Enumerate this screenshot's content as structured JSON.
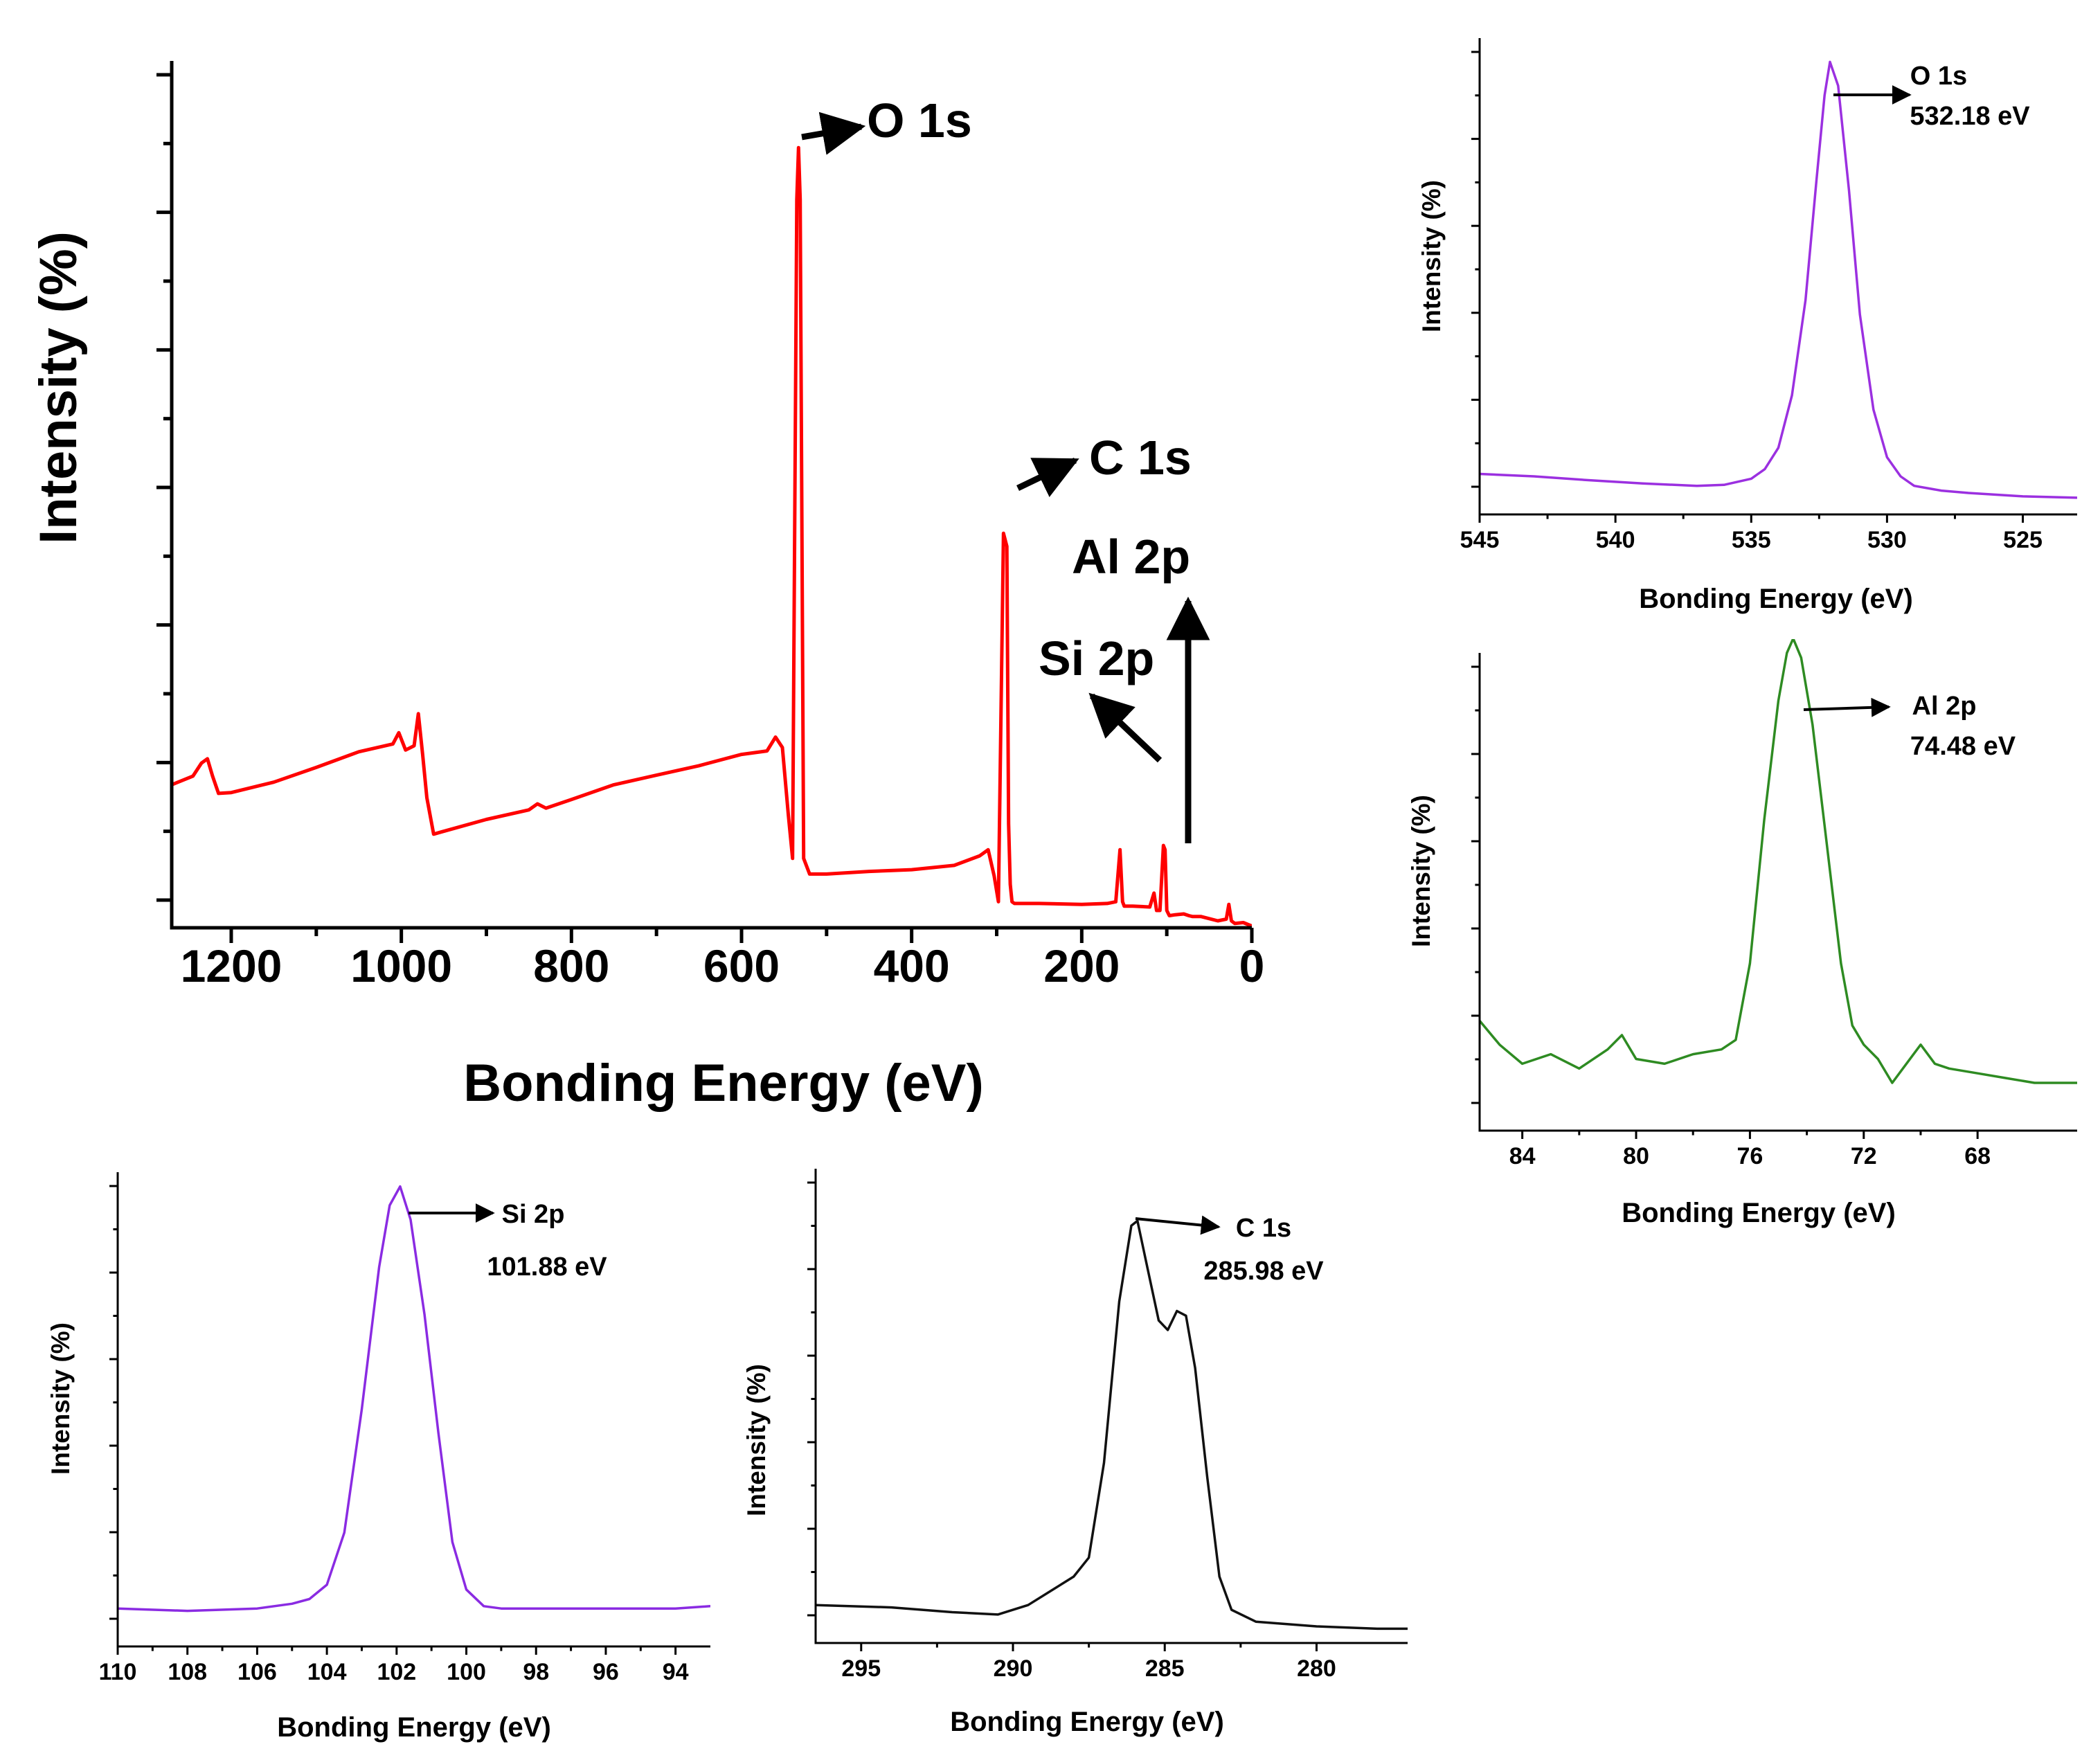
{
  "chart_data": [
    {
      "id": "survey",
      "type": "line",
      "title": "",
      "xlabel": "Bonding Energy (eV)",
      "ylabel": "Intensity (%)",
      "xlim": [
        1270,
        0
      ],
      "ylim": [
        0,
        100
      ],
      "xticks": [
        1200,
        1000,
        800,
        600,
        400,
        200,
        0
      ],
      "color": "#ff0000",
      "series": [
        {
          "x": [
            1270,
            1245,
            1235,
            1228,
            1222,
            1215,
            1200,
            1150,
            1100,
            1050,
            1010,
            1003,
            995,
            985,
            980,
            975,
            970,
            962,
            955,
            900,
            850,
            840,
            830,
            800,
            750,
            700,
            650,
            600,
            570,
            560,
            552,
            545,
            540,
            535,
            533,
            531,
            527,
            520,
            500,
            450,
            400,
            350,
            320,
            310,
            303,
            298,
            292,
            288,
            286,
            284,
            282,
            279,
            270,
            250,
            200,
            170,
            160,
            155,
            152,
            150,
            140,
            120,
            115,
            112,
            108,
            104,
            102,
            100,
            97,
            90,
            80,
            74,
            70,
            60,
            40,
            30,
            27,
            24,
            20,
            10,
            0
          ],
          "y": [
            16.5,
            17.5,
            19,
            19.5,
            17.5,
            15.5,
            15.6,
            16.8,
            18.5,
            20.3,
            21.2,
            22.5,
            20.5,
            21,
            24.7,
            20,
            15,
            10.8,
            11,
            12.5,
            13.6,
            14.3,
            13.8,
            14.8,
            16.5,
            17.6,
            18.7,
            20,
            20.4,
            22,
            20.8,
            13,
            8,
            84,
            90,
            84,
            8,
            6.2,
            6.2,
            6.5,
            6.7,
            7.2,
            8.3,
            9,
            6,
            3,
            45.5,
            44,
            12,
            5,
            3,
            2.8,
            2.8,
            2.8,
            2.7,
            2.8,
            3,
            9,
            3,
            2.5,
            2.5,
            2.4,
            4,
            2,
            2,
            9.5,
            9,
            2,
            1.4,
            1.5,
            1.6,
            1.4,
            1.3,
            1.3,
            0.8,
            1,
            2.7,
            0.8,
            0.5,
            0.6,
            0.2
          ]
        }
      ],
      "annotations": [
        "O 1s",
        "C 1s",
        "Al 2p",
        "Si 2p"
      ]
    },
    {
      "id": "o1s",
      "type": "line",
      "title": "",
      "xlabel": "Bonding Energy (eV)",
      "ylabel": "Intensity (%)",
      "xlim": [
        545,
        523
      ],
      "ylim": [
        0,
        100
      ],
      "xticks": [
        545,
        540,
        535,
        530,
        525
      ],
      "color": "#9b30e0",
      "peak": {
        "x": 532.18,
        "label": "O 1s",
        "value": "532.18 eV"
      },
      "series": [
        {
          "x": [
            545,
            543,
            541,
            539,
            537,
            536,
            535,
            534.5,
            534,
            533.5,
            533,
            532.6,
            532.3,
            532.1,
            531.8,
            531.4,
            531,
            530.5,
            530,
            529.5,
            529,
            528,
            527,
            525,
            523
          ],
          "y": [
            8.5,
            8,
            7.2,
            6.5,
            6,
            6.2,
            7.5,
            9.5,
            14,
            25,
            45,
            70,
            88,
            95,
            90,
            68,
            42,
            22,
            12,
            8,
            6,
            5,
            4.5,
            3.8,
            3.5
          ]
        }
      ]
    },
    {
      "id": "al2p",
      "type": "line",
      "title": "",
      "xlabel": "Bonding Energy (eV)",
      "ylabel": "Intensity (%)",
      "xlim": [
        85.5,
        64.5
      ],
      "ylim": [
        0,
        100
      ],
      "xticks": [
        84,
        80,
        76,
        72,
        68
      ],
      "color": "#2e8b22",
      "peak": {
        "x": 74.48,
        "label": "Al 2p",
        "value": "74.48 eV"
      },
      "series": [
        {
          "x": [
            85.5,
            84.8,
            84,
            83,
            82,
            81,
            80.5,
            80,
            79,
            78,
            77,
            76.5,
            76,
            75.5,
            75,
            74.7,
            74.48,
            74.2,
            73.8,
            73.3,
            72.8,
            72.4,
            72,
            71.5,
            71,
            70.5,
            70,
            69.5,
            69,
            68,
            67,
            66,
            65,
            64.5
          ],
          "y": [
            23,
            18,
            14,
            16,
            13,
            17,
            20,
            15,
            14,
            16,
            17,
            19,
            35,
            65,
            90,
            100,
            103,
            99,
            85,
            60,
            35,
            22,
            18,
            15,
            10,
            14,
            18,
            14,
            13,
            12,
            11,
            10,
            10,
            10
          ]
        }
      ]
    },
    {
      "id": "si2p",
      "type": "line",
      "title": "",
      "xlabel": "Bonding Energy (eV)",
      "ylabel": "Intensity (%)",
      "xlim": [
        110,
        93
      ],
      "ylim": [
        0,
        100
      ],
      "xticks": [
        110,
        108,
        106,
        104,
        102,
        100,
        98,
        96,
        94
      ],
      "color": "#8a2be2",
      "peak": {
        "x": 101.88,
        "label": "Si 2p",
        "value": "101.88 eV"
      },
      "series": [
        {
          "x": [
            110,
            108,
            106,
            105,
            104.5,
            104,
            103.5,
            103,
            102.5,
            102.2,
            101.9,
            101.6,
            101.2,
            100.8,
            100.4,
            100,
            99.5,
            99,
            98,
            97,
            96,
            95,
            94,
            93
          ],
          "y": [
            8,
            7.5,
            8,
            9,
            10,
            13,
            24,
            50,
            80,
            93,
            97,
            90,
            70,
            45,
            22,
            12,
            8.5,
            8,
            8,
            8,
            8,
            8,
            8,
            8.5
          ]
        }
      ]
    },
    {
      "id": "c1s",
      "type": "line",
      "title": "",
      "xlabel": "Bonding Energy (eV)",
      "ylabel": "Intensity (%)",
      "xlim": [
        296.5,
        277
      ],
      "ylim": [
        0,
        100
      ],
      "xticks": [
        295,
        290,
        285,
        280
      ],
      "color": "#111111",
      "peak": {
        "x": 285.98,
        "label": "C 1s",
        "value": "285.98 eV"
      },
      "series": [
        {
          "x": [
            296.5,
            294,
            292,
            290.5,
            289.5,
            288.5,
            288,
            287.5,
            287,
            286.5,
            286.1,
            285.9,
            285.6,
            285.2,
            284.9,
            284.6,
            284.3,
            284,
            283.6,
            283.2,
            282.8,
            282,
            281,
            280,
            278,
            277
          ],
          "y": [
            8,
            7.5,
            6.5,
            6,
            8,
            12,
            14,
            18,
            38,
            72,
            88,
            89,
            80,
            68,
            66,
            70,
            69,
            58,
            35,
            14,
            7,
            4.5,
            4,
            3.5,
            3,
            3
          ]
        }
      ]
    }
  ]
}
